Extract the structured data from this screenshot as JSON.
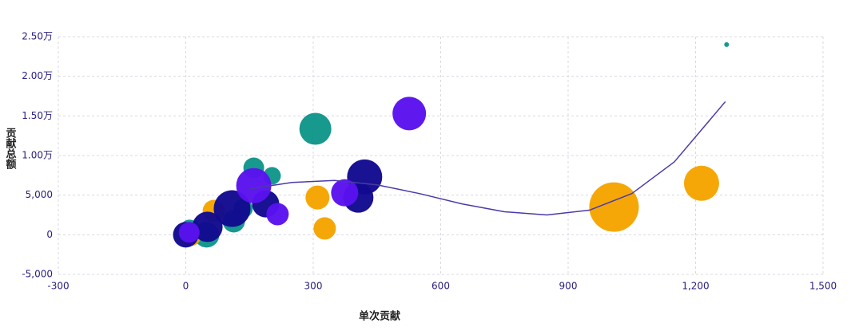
{
  "chart_data": {
    "type": "bubble",
    "xlabel": "单次贡献",
    "ylabel": "贡献总额",
    "xlim": [
      -300,
      1500
    ],
    "xticks": [
      -300,
      0,
      300,
      600,
      900,
      {
        "value": 1200,
        "label": "1,200"
      },
      {
        "value": 1500,
        "label": "1,500"
      }
    ],
    "ylim": [
      -5000,
      25000
    ],
    "yticks": [
      {
        "value": -5000,
        "label": "-5,000"
      },
      0,
      {
        "value": 5000,
        "label": "5,000"
      },
      {
        "value": 10000,
        "label": "1.00万"
      },
      {
        "value": 15000,
        "label": "1.50万"
      },
      {
        "value": 20000,
        "label": "2.00万"
      },
      {
        "value": 25000,
        "label": "2.50万"
      }
    ],
    "grid": true,
    "series": [
      {
        "color": "#0f968a",
        "x": [
          305,
          1273,
          160,
          203,
          113,
          49,
          9,
          135
        ],
        "values": [
          13370,
          24000,
          8440,
          7440,
          1700,
          0,
          700,
          3300
        ],
        "sizes": [
          20,
          3,
          13,
          11,
          14,
          16,
          12,
          12
        ]
      },
      {
        "color": "#f5a400",
        "x": [
          1008,
          1214,
          310,
          327,
          66,
          13
        ],
        "values": [
          3500,
          6500,
          4700,
          800,
          3000,
          -200
        ],
        "sizes": [
          31,
          22,
          15,
          14,
          14,
          12
        ]
      },
      {
        "color": "#120a8f",
        "x": [
          421,
          406,
          188,
          109,
          51,
          0
        ],
        "values": [
          7300,
          4700,
          3900,
          3300,
          1000,
          0
        ],
        "sizes": [
          22,
          19,
          17,
          23,
          19,
          16
        ]
      },
      {
        "color": "#5a12ee",
        "x": [
          526,
          374,
          160,
          216,
          8
        ],
        "values": [
          15300,
          5300,
          6200,
          2600,
          300
        ],
        "sizes": [
          21,
          17,
          22,
          14,
          13
        ]
      }
    ],
    "trendline": {
      "color": "#4a3aa8",
      "x": [
        150,
        250,
        350,
        450,
        550,
        650,
        750,
        850,
        950,
        1050,
        1150,
        1270
      ],
      "values": [
        5800,
        6600,
        6850,
        6300,
        5200,
        3900,
        2900,
        2500,
        3100,
        5200,
        9200,
        16800
      ]
    }
  }
}
